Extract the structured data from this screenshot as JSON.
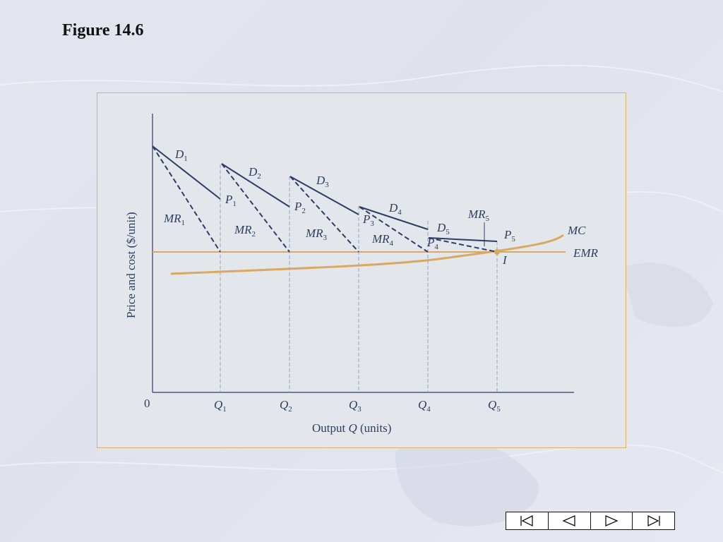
{
  "title": "Figure 14.6",
  "diagram": {
    "y_axis_label": "Price and cost ($/unit)",
    "x_axis_label_pre": "Output ",
    "x_axis_label_var": "Q",
    "x_axis_label_post": " (units)",
    "origin": "0",
    "x_ticks": [
      {
        "main": "Q",
        "sub": "1"
      },
      {
        "main": "Q",
        "sub": "2"
      },
      {
        "main": "Q",
        "sub": "3"
      },
      {
        "main": "Q",
        "sub": "4"
      },
      {
        "main": "Q",
        "sub": "5"
      }
    ],
    "demand_labels": [
      {
        "main": "D",
        "sub": "1"
      },
      {
        "main": "D",
        "sub": "2"
      },
      {
        "main": "D",
        "sub": "3"
      },
      {
        "main": "D",
        "sub": "4"
      },
      {
        "main": "D",
        "sub": "5"
      }
    ],
    "mr_labels": [
      {
        "main": "MR",
        "sub": "1"
      },
      {
        "main": "MR",
        "sub": "2"
      },
      {
        "main": "MR",
        "sub": "3"
      },
      {
        "main": "MR",
        "sub": "4"
      },
      {
        "main": "MR",
        "sub": "5"
      }
    ],
    "price_labels": [
      {
        "main": "P",
        "sub": "1"
      },
      {
        "main": "P",
        "sub": "2"
      },
      {
        "main": "P",
        "sub": "3"
      },
      {
        "main": "P",
        "sub": "4"
      },
      {
        "main": "P",
        "sub": "5"
      }
    ],
    "mc_label": "MC",
    "emr_label": "EMR",
    "intersection_label": "I",
    "colors": {
      "demand": "#2c3e66",
      "curves": "#d9a862",
      "guides": "#8fa3c0",
      "panel_border": "#d9b26a"
    }
  },
  "nav": {
    "buttons": [
      {
        "name": "first-slide-button",
        "icon": "first-icon"
      },
      {
        "name": "previous-slide-button",
        "icon": "previous-icon"
      },
      {
        "name": "next-slide-button",
        "icon": "next-icon"
      },
      {
        "name": "last-slide-button",
        "icon": "last-icon"
      }
    ]
  }
}
